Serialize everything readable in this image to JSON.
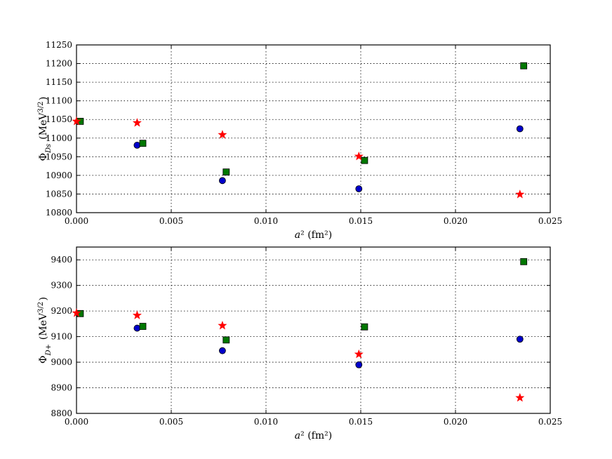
{
  "chart_data": [
    {
      "type": "scatter",
      "xlabel": "a² (fm²)",
      "ylabel": "Φ_Ds (MeV^3/2)",
      "xlim": [
        0.0,
        0.025
      ],
      "ylim": [
        10800,
        11250
      ],
      "xticks": [
        "0.000",
        "0.005",
        "0.010",
        "0.015",
        "0.020",
        "0.025"
      ],
      "yticks": [
        "10800",
        "10850",
        "10900",
        "10950",
        "11000",
        "11050",
        "11100",
        "11150",
        "11200",
        "11250"
      ],
      "grid": true,
      "series": [
        {
          "marker": "circle",
          "color": "#0000cc",
          "x": [
            0.0032,
            0.0077,
            0.0149,
            0.0234
          ],
          "y": [
            10981,
            10886,
            10864,
            11025
          ]
        },
        {
          "marker": "square",
          "color": "#007700",
          "x": [
            0.0002,
            0.0035,
            0.0079,
            0.0152,
            0.0236
          ],
          "y": [
            11045,
            10986,
            10909,
            10940,
            11194
          ]
        },
        {
          "marker": "star",
          "color": "#ff0000",
          "x": [
            0.0,
            0.0032,
            0.0077,
            0.0149,
            0.0234
          ],
          "y": [
            11045,
            11041,
            11009,
            10951,
            10849
          ]
        }
      ]
    },
    {
      "type": "scatter",
      "xlabel": "a² (fm²)",
      "ylabel": "Φ_D+ (MeV^3/2)",
      "xlim": [
        0.0,
        0.025
      ],
      "ylim": [
        8800,
        9450
      ],
      "xticks": [
        "0.000",
        "0.005",
        "0.010",
        "0.015",
        "0.020",
        "0.025"
      ],
      "yticks": [
        "8800",
        "8900",
        "9000",
        "9100",
        "9200",
        "9300",
        "9400"
      ],
      "grid": true,
      "series": [
        {
          "marker": "circle",
          "color": "#0000cc",
          "x": [
            0.0032,
            0.0077,
            0.0149,
            0.0234
          ],
          "y": [
            9133,
            9045,
            8990,
            9090
          ]
        },
        {
          "marker": "square",
          "color": "#007700",
          "x": [
            0.0002,
            0.0035,
            0.0079,
            0.0152,
            0.0236
          ],
          "y": [
            9190,
            9140,
            9087,
            9138,
            9393
          ]
        },
        {
          "marker": "star",
          "color": "#ff0000",
          "x": [
            0.0,
            0.0032,
            0.0077,
            0.0149,
            0.0234
          ],
          "y": [
            9192,
            9183,
            9143,
            9031,
            8861
          ]
        }
      ]
    }
  ]
}
